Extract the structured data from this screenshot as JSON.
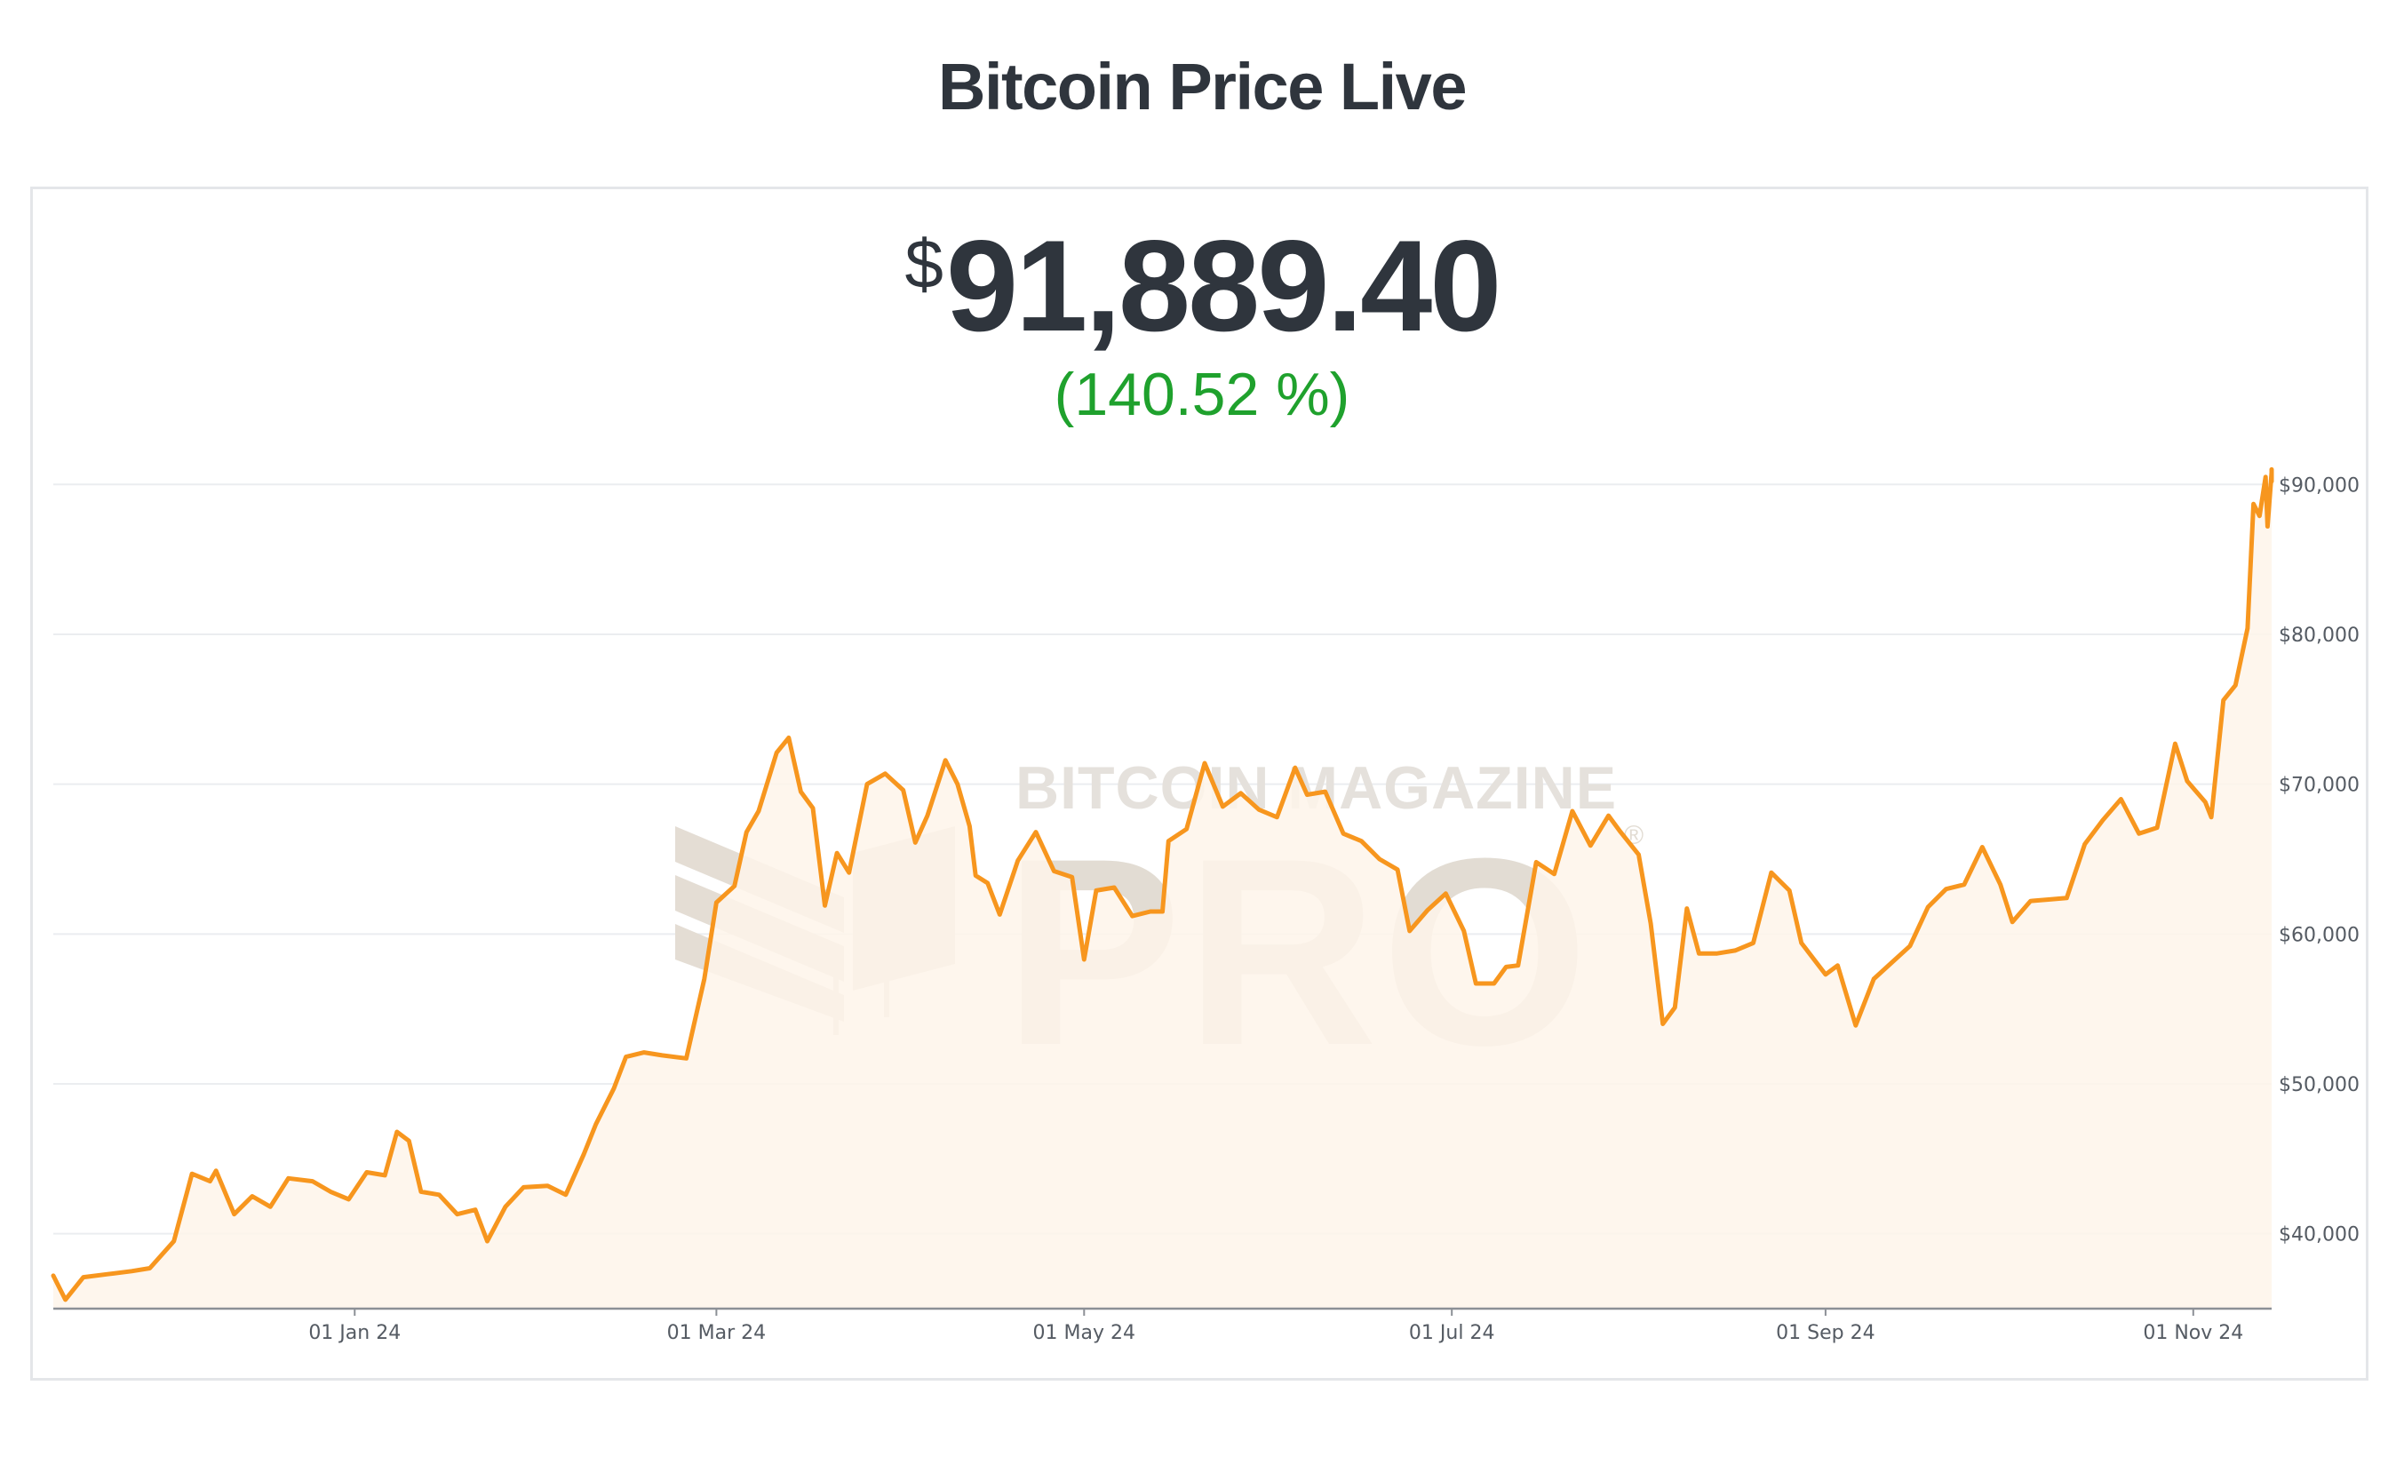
{
  "page": {
    "title": "Bitcoin Price Live"
  },
  "price": {
    "currency": "$",
    "amount": "91,889.40",
    "change": "(140.52 %)"
  },
  "watermark": {
    "brand": "BITCOIN MAGAZINE",
    "product": "PRO",
    "registered": "®"
  },
  "colors": {
    "line": "#f7961e",
    "area": "#fef5ea",
    "change_positive": "#1fa12d",
    "text_dark": "#2f353d",
    "grid": "#ebedf0"
  },
  "chart_data": {
    "type": "area",
    "title": "",
    "xlabel": "",
    "ylabel": "",
    "x_range": [
      "2023-11-12",
      "2024-11-14"
    ],
    "ylim": [
      35000,
      91500
    ],
    "grid": true,
    "y_axis_position": "right",
    "y_ticks": [
      {
        "value": 40000,
        "label": "$40,000"
      },
      {
        "value": 50000,
        "label": "$50,000"
      },
      {
        "value": 60000,
        "label": "$60,000"
      },
      {
        "value": 70000,
        "label": "$70,000"
      },
      {
        "value": 80000,
        "label": "$80,000"
      },
      {
        "value": 90000,
        "label": "$90,000"
      }
    ],
    "x_ticks": [
      {
        "date": "2024-01-01",
        "label": "01 Jan 24"
      },
      {
        "date": "2024-03-01",
        "label": "01 Mar 24"
      },
      {
        "date": "2024-05-01",
        "label": "01 May 24"
      },
      {
        "date": "2024-07-01",
        "label": "01 Jul 24"
      },
      {
        "date": "2024-09-01",
        "label": "01 Sep 24"
      },
      {
        "date": "2024-11-01",
        "label": "01 Nov 24"
      }
    ],
    "series": [
      {
        "points": [
          [
            "2023-11-12",
            37200
          ],
          [
            "2023-11-14",
            35600
          ],
          [
            "2023-11-17",
            37100
          ],
          [
            "2023-11-21",
            37300
          ],
          [
            "2023-11-25",
            37500
          ],
          [
            "2023-11-28",
            37700
          ],
          [
            "2023-12-02",
            39500
          ],
          [
            "2023-12-05",
            44000
          ],
          [
            "2023-12-08",
            43500
          ],
          [
            "2023-12-09",
            44200
          ],
          [
            "2023-12-12",
            41300
          ],
          [
            "2023-12-15",
            42500
          ],
          [
            "2023-12-18",
            41800
          ],
          [
            "2023-12-21",
            43700
          ],
          [
            "2023-12-25",
            43500
          ],
          [
            "2023-12-28",
            42800
          ],
          [
            "2023-12-31",
            42300
          ],
          [
            "2024-01-03",
            44100
          ],
          [
            "2024-01-06",
            43900
          ],
          [
            "2024-01-08",
            46800
          ],
          [
            "2024-01-10",
            46200
          ],
          [
            "2024-01-12",
            42800
          ],
          [
            "2024-01-15",
            42600
          ],
          [
            "2024-01-18",
            41300
          ],
          [
            "2024-01-21",
            41600
          ],
          [
            "2024-01-23",
            39500
          ],
          [
            "2024-01-26",
            41800
          ],
          [
            "2024-01-29",
            43100
          ],
          [
            "2024-02-02",
            43200
          ],
          [
            "2024-02-05",
            42600
          ],
          [
            "2024-02-08",
            45300
          ],
          [
            "2024-02-10",
            47300
          ],
          [
            "2024-02-13",
            49700
          ],
          [
            "2024-02-15",
            51800
          ],
          [
            "2024-02-18",
            52100
          ],
          [
            "2024-02-21",
            51900
          ],
          [
            "2024-02-25",
            51700
          ],
          [
            "2024-02-28",
            57000
          ],
          [
            "2024-03-01",
            62100
          ],
          [
            "2024-03-04",
            63200
          ],
          [
            "2024-03-06",
            66800
          ],
          [
            "2024-03-08",
            68200
          ],
          [
            "2024-03-11",
            72100
          ],
          [
            "2024-03-13",
            73100
          ],
          [
            "2024-03-15",
            69500
          ],
          [
            "2024-03-17",
            68400
          ],
          [
            "2024-03-19",
            61900
          ],
          [
            "2024-03-21",
            65400
          ],
          [
            "2024-03-23",
            64100
          ],
          [
            "2024-03-26",
            70000
          ],
          [
            "2024-03-29",
            70700
          ],
          [
            "2024-04-01",
            69600
          ],
          [
            "2024-04-03",
            66100
          ],
          [
            "2024-04-05",
            67900
          ],
          [
            "2024-04-08",
            71600
          ],
          [
            "2024-04-10",
            70000
          ],
          [
            "2024-04-12",
            67200
          ],
          [
            "2024-04-13",
            63900
          ],
          [
            "2024-04-15",
            63400
          ],
          [
            "2024-04-17",
            61300
          ],
          [
            "2024-04-20",
            64900
          ],
          [
            "2024-04-23",
            66800
          ],
          [
            "2024-04-26",
            64200
          ],
          [
            "2024-04-29",
            63800
          ],
          [
            "2024-05-01",
            58300
          ],
          [
            "2024-05-03",
            62900
          ],
          [
            "2024-05-06",
            63100
          ],
          [
            "2024-05-09",
            61200
          ],
          [
            "2024-05-12",
            61500
          ],
          [
            "2024-05-14",
            61500
          ],
          [
            "2024-05-15",
            66200
          ],
          [
            "2024-05-18",
            67000
          ],
          [
            "2024-05-21",
            71400
          ],
          [
            "2024-05-24",
            68500
          ],
          [
            "2024-05-27",
            69400
          ],
          [
            "2024-05-30",
            68300
          ],
          [
            "2024-06-02",
            67800
          ],
          [
            "2024-06-05",
            71100
          ],
          [
            "2024-06-07",
            69300
          ],
          [
            "2024-06-10",
            69500
          ],
          [
            "2024-06-13",
            66700
          ],
          [
            "2024-06-16",
            66200
          ],
          [
            "2024-06-19",
            65000
          ],
          [
            "2024-06-22",
            64300
          ],
          [
            "2024-06-24",
            60200
          ],
          [
            "2024-06-27",
            61600
          ],
          [
            "2024-06-30",
            62700
          ],
          [
            "2024-07-03",
            60200
          ],
          [
            "2024-07-05",
            56700
          ],
          [
            "2024-07-08",
            56700
          ],
          [
            "2024-07-10",
            57800
          ],
          [
            "2024-07-12",
            57900
          ],
          [
            "2024-07-15",
            64800
          ],
          [
            "2024-07-18",
            64000
          ],
          [
            "2024-07-21",
            68200
          ],
          [
            "2024-07-24",
            65900
          ],
          [
            "2024-07-27",
            67900
          ],
          [
            "2024-07-29",
            66800
          ],
          [
            "2024-08-01",
            65300
          ],
          [
            "2024-08-03",
            60700
          ],
          [
            "2024-08-05",
            54000
          ],
          [
            "2024-08-07",
            55100
          ],
          [
            "2024-08-09",
            61700
          ],
          [
            "2024-08-11",
            58700
          ],
          [
            "2024-08-14",
            58700
          ],
          [
            "2024-08-17",
            58900
          ],
          [
            "2024-08-20",
            59400
          ],
          [
            "2024-08-23",
            64100
          ],
          [
            "2024-08-26",
            62900
          ],
          [
            "2024-08-28",
            59400
          ],
          [
            "2024-09-01",
            57300
          ],
          [
            "2024-09-03",
            57900
          ],
          [
            "2024-09-06",
            53900
          ],
          [
            "2024-09-09",
            57000
          ],
          [
            "2024-09-12",
            58100
          ],
          [
            "2024-09-15",
            59200
          ],
          [
            "2024-09-18",
            61800
          ],
          [
            "2024-09-21",
            63000
          ],
          [
            "2024-09-24",
            63300
          ],
          [
            "2024-09-27",
            65800
          ],
          [
            "2024-09-30",
            63300
          ],
          [
            "2024-10-02",
            60800
          ],
          [
            "2024-10-05",
            62200
          ],
          [
            "2024-10-08",
            62300
          ],
          [
            "2024-10-11",
            62400
          ],
          [
            "2024-10-14",
            66000
          ],
          [
            "2024-10-17",
            67600
          ],
          [
            "2024-10-20",
            69000
          ],
          [
            "2024-10-23",
            66700
          ],
          [
            "2024-10-26",
            67100
          ],
          [
            "2024-10-29",
            72700
          ],
          [
            "2024-10-31",
            70200
          ],
          [
            "2024-11-03",
            68800
          ],
          [
            "2024-11-04",
            67800
          ],
          [
            "2024-11-06",
            75600
          ],
          [
            "2024-11-08",
            76600
          ],
          [
            "2024-11-10",
            80400
          ],
          [
            "2024-11-11",
            88700
          ],
          [
            "2024-11-12",
            87900
          ],
          [
            "2024-11-13",
            90500
          ],
          [
            "2024-11-13",
            87200
          ],
          [
            "2024-11-14",
            90800
          ],
          [
            "2024-11-14",
            91000
          ],
          [
            "2024-11-14",
            90200
          ]
        ]
      }
    ]
  }
}
